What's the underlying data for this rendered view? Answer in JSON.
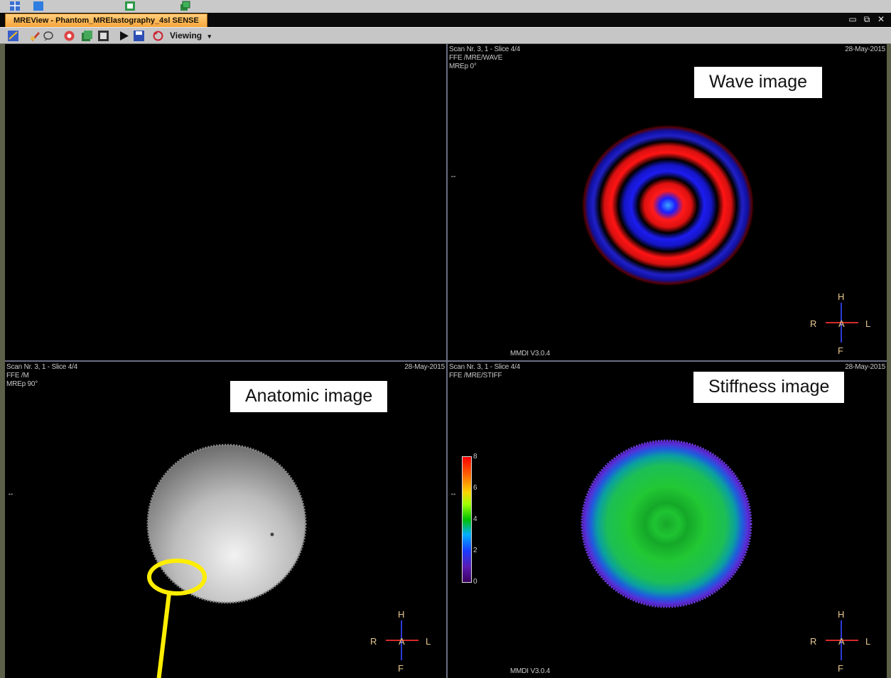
{
  "window": {
    "title": "MREView - Phantom_MRElastography_4sl SENSE",
    "controls": [
      "restore",
      "float",
      "close"
    ]
  },
  "toolbar": {
    "viewing_label": "Viewing",
    "dropdown_glyph": "▾",
    "icons": [
      "layout-icon",
      "stop-icon",
      "paint-icon",
      "roi-icon",
      "stack-icon",
      "series-icon",
      "export-icon",
      "play-icon",
      "save-icon",
      "refresh-icon"
    ]
  },
  "panes": {
    "top_left": {
      "empty": true
    },
    "top_right": {
      "header": [
        "Scan Nr. 3, 1 - Slice 4/4",
        "FFE  /MRE/WAVE",
        "MREp 0°"
      ],
      "date": "28-May-2015",
      "version": "MMDI V3.0.4",
      "label": "Wave image",
      "arrow": "↔"
    },
    "bottom_left": {
      "header": [
        "Scan Nr. 3, 1 - Slice 4/4",
        "FFE  /M",
        "MREp 90°"
      ],
      "date": "28-May-2015",
      "label": "Anatomic image",
      "arrow": "↔"
    },
    "bottom_right": {
      "header": [
        "Scan Nr. 3, 1 - Slice 4/4",
        "FFE  /MRE/STIFF"
      ],
      "date": "28-May-2015",
      "version": "MMDI V3.0.4",
      "label": "Stiffness image",
      "arrow": "↔",
      "colorbar_ticks": [
        "8",
        "6",
        "4",
        "2",
        "0"
      ]
    }
  },
  "orientation": {
    "head": "H",
    "foot": "F",
    "right": "R",
    "left": "L",
    "anterior": "A"
  },
  "colors": {
    "title_tab": "#f7a53b",
    "annotation_yellow": "#ffee00",
    "wave_red": "#ff1a1a",
    "wave_blue": "#1a1aff",
    "stiff_green": "#22c830",
    "stiff_purple": "#5b2ad6"
  }
}
